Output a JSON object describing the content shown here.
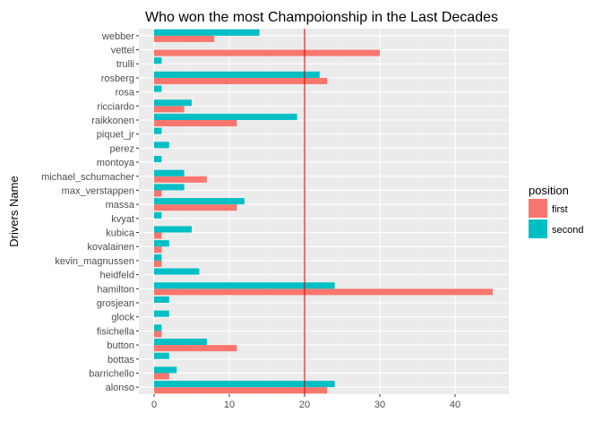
{
  "chart_data": {
    "type": "bar",
    "orientation": "horizontal",
    "title": "Who won the most Champoionship in the Last Decades",
    "xlabel": "",
    "ylabel": "Drivers Name",
    "xlim": [
      0,
      45
    ],
    "xticks": [
      0,
      10,
      20,
      30,
      40
    ],
    "grid": true,
    "reference_line": {
      "x": 20,
      "color": "#cc0000"
    },
    "legend": {
      "title": "position",
      "placement": "right"
    },
    "categories": [
      "alonso",
      "barrichello",
      "bottas",
      "button",
      "fisichella",
      "glock",
      "grosjean",
      "hamilton",
      "heidfeld",
      "kevin_magnussen",
      "kovalainen",
      "kubica",
      "kvyat",
      "massa",
      "max_verstappen",
      "michael_schumacher",
      "montoya",
      "perez",
      "piquet_jr",
      "raikkonen",
      "ricciardo",
      "rosa",
      "rosberg",
      "trulli",
      "vettel",
      "webber"
    ],
    "series": [
      {
        "name": "first",
        "color": "#f8766d",
        "values": [
          23,
          2,
          0,
          11,
          1,
          0,
          0,
          45,
          0,
          1,
          1,
          1,
          0,
          11,
          1,
          7,
          0,
          0,
          0,
          11,
          4,
          0,
          23,
          0,
          30,
          8
        ]
      },
      {
        "name": "second",
        "color": "#00bfc4",
        "values": [
          24,
          3,
          2,
          7,
          1,
          2,
          2,
          24,
          6,
          1,
          2,
          5,
          1,
          12,
          4,
          4,
          1,
          2,
          1,
          19,
          5,
          1,
          22,
          1,
          0,
          14
        ]
      }
    ]
  }
}
